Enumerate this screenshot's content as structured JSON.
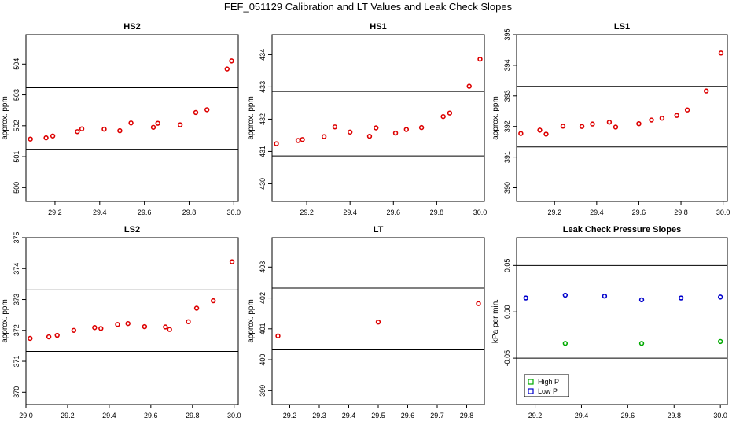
{
  "page": {
    "title": "FEF_051129  Calibration and LT Values and Leak Check Slopes"
  },
  "chart_data": [
    {
      "type": "scatter",
      "title": "HS2",
      "ylabel": "approx. ppm",
      "xlim": [
        29.07,
        30.02
      ],
      "ylim": [
        499.55,
        504.95
      ],
      "xticks": [
        29.2,
        29.4,
        29.6,
        29.8,
        30.0
      ],
      "xtick_labels": [
        "29.2",
        "29.4",
        "29.6",
        "29.8",
        "30.0"
      ],
      "yticks": [
        500,
        501,
        502,
        503,
        504
      ],
      "yticks_labels": [
        "500",
        "501",
        "502",
        "503",
        "504"
      ],
      "hlines": [
        501.24,
        503.23
      ],
      "series": [
        {
          "color": "#dd0000",
          "marker": "circle",
          "x": [
            29.09,
            29.16,
            29.19,
            29.3,
            29.32,
            29.42,
            29.49,
            29.54,
            29.64,
            29.66,
            29.76,
            29.83,
            29.88,
            29.97,
            29.99
          ],
          "y": [
            501.57,
            501.61,
            501.67,
            501.81,
            501.9,
            501.89,
            501.84,
            502.09,
            501.95,
            502.08,
            502.03,
            502.43,
            502.52,
            503.84,
            504.1
          ]
        }
      ]
    },
    {
      "type": "scatter",
      "title": "HS1",
      "ylabel": "approx. ppm",
      "xlim": [
        29.04,
        30.02
      ],
      "ylim": [
        429.45,
        434.62
      ],
      "xticks": [
        29.2,
        29.4,
        29.6,
        29.8,
        30.0
      ],
      "xtick_labels": [
        "29.2",
        "29.4",
        "29.6",
        "29.8",
        "30.0"
      ],
      "yticks": [
        430,
        431,
        432,
        433,
        434
      ],
      "yticks_labels": [
        "430",
        "431",
        "432",
        "433",
        "434"
      ],
      "hlines": [
        430.86,
        432.86
      ],
      "series": [
        {
          "color": "#dd0000",
          "marker": "circle",
          "x": [
            29.06,
            29.16,
            29.18,
            29.28,
            29.33,
            29.4,
            29.49,
            29.52,
            29.61,
            29.66,
            29.73,
            29.83,
            29.86,
            29.95,
            30.0
          ],
          "y": [
            431.24,
            431.34,
            431.37,
            431.46,
            431.76,
            431.6,
            431.47,
            431.73,
            431.57,
            431.68,
            431.74,
            432.08,
            432.19,
            433.02,
            433.86
          ]
        }
      ]
    },
    {
      "type": "scatter",
      "title": "LS1",
      "ylabel": "approx. ppm",
      "xlim": [
        29.02,
        30.02
      ],
      "ylim": [
        389.55,
        395.0
      ],
      "xticks": [
        29.2,
        29.4,
        29.6,
        29.8,
        30.0
      ],
      "xtick_labels": [
        "29.2",
        "29.4",
        "29.6",
        "29.8",
        "30.0"
      ],
      "yticks": [
        390,
        391,
        392,
        393,
        394,
        395
      ],
      "yticks_labels": [
        "390",
        "391",
        "392",
        "393",
        "394",
        "395"
      ],
      "hlines": [
        391.33,
        393.31
      ],
      "series": [
        {
          "color": "#dd0000",
          "marker": "circle",
          "x": [
            29.04,
            29.13,
            29.16,
            29.24,
            29.33,
            29.38,
            29.46,
            29.49,
            29.6,
            29.66,
            29.71,
            29.78,
            29.83,
            29.92,
            29.99
          ],
          "y": [
            391.77,
            391.88,
            391.75,
            392.01,
            392.0,
            392.08,
            392.14,
            391.98,
            392.09,
            392.21,
            392.27,
            392.36,
            392.54,
            393.16,
            394.4
          ]
        }
      ]
    },
    {
      "type": "scatter",
      "title": "LS2",
      "ylabel": "approx. ppm",
      "xlim": [
        29.0,
        30.02
      ],
      "ylim": [
        369.6,
        375.0
      ],
      "xticks": [
        29.0,
        29.2,
        29.4,
        29.6,
        29.8,
        30.0
      ],
      "xtick_labels": [
        "29.0",
        "29.2",
        "29.4",
        "29.6",
        "29.8",
        "30.0"
      ],
      "yticks": [
        370,
        371,
        372,
        373,
        374,
        375
      ],
      "yticks_labels": [
        "370",
        "371",
        "372",
        "373",
        "374",
        "375"
      ],
      "hlines": [
        371.32,
        373.31
      ],
      "series": [
        {
          "color": "#dd0000",
          "marker": "circle",
          "x": [
            29.02,
            29.11,
            29.15,
            29.23,
            29.33,
            29.36,
            29.44,
            29.49,
            29.57,
            29.67,
            29.69,
            29.78,
            29.82,
            29.9,
            29.99
          ],
          "y": [
            371.74,
            371.79,
            371.84,
            372.0,
            372.09,
            372.06,
            372.19,
            372.22,
            372.12,
            372.11,
            372.03,
            372.28,
            372.72,
            372.96,
            374.22
          ]
        }
      ]
    },
    {
      "type": "scatter",
      "title": "LT",
      "ylabel": "approx. ppm",
      "xlim": [
        29.14,
        29.86
      ],
      "ylim": [
        398.55,
        403.95
      ],
      "xticks": [
        29.2,
        29.3,
        29.4,
        29.5,
        29.6,
        29.7,
        29.8
      ],
      "xtick_labels": [
        "29.2",
        "29.3",
        "29.4",
        "29.5",
        "29.6",
        "29.7",
        "29.8"
      ],
      "yticks": [
        399,
        400,
        401,
        402,
        403
      ],
      "yticks_labels": [
        "399",
        "400",
        "401",
        "402",
        "403"
      ],
      "hlines": [
        400.32,
        402.32
      ],
      "series": [
        {
          "color": "#dd0000",
          "marker": "circle",
          "x": [
            29.16,
            29.5,
            29.84
          ],
          "y": [
            400.77,
            401.22,
            401.82
          ]
        }
      ]
    },
    {
      "type": "scatter",
      "title": "Leak Check Pressure Slopes",
      "ylabel": "kPa per min.",
      "xlim": [
        29.12,
        30.03
      ],
      "ylim": [
        -0.1,
        0.08
      ],
      "xticks": [
        29.2,
        29.4,
        29.6,
        29.8,
        30.0
      ],
      "xtick_labels": [
        "29.2",
        "29.4",
        "29.6",
        "29.8",
        "30.0"
      ],
      "yticks": [
        -0.05,
        0.0,
        0.05
      ],
      "yticks_labels": [
        "-0.05",
        "0.00",
        "0.05"
      ],
      "hlines": [
        -0.05,
        0.05
      ],
      "legend": {
        "position": "bottom-left"
      },
      "series": [
        {
          "name": "High P",
          "color": "#00aa00",
          "marker": "circle",
          "x": [
            29.33,
            29.66,
            30.0
          ],
          "y": [
            -0.034,
            -0.034,
            -0.032
          ]
        },
        {
          "name": "Low P",
          "color": "#0000cc",
          "marker": "circle",
          "x": [
            29.16,
            29.33,
            29.5,
            29.66,
            29.83,
            30.0
          ],
          "y": [
            0.015,
            0.018,
            0.017,
            0.013,
            0.015,
            0.016
          ]
        }
      ]
    }
  ]
}
